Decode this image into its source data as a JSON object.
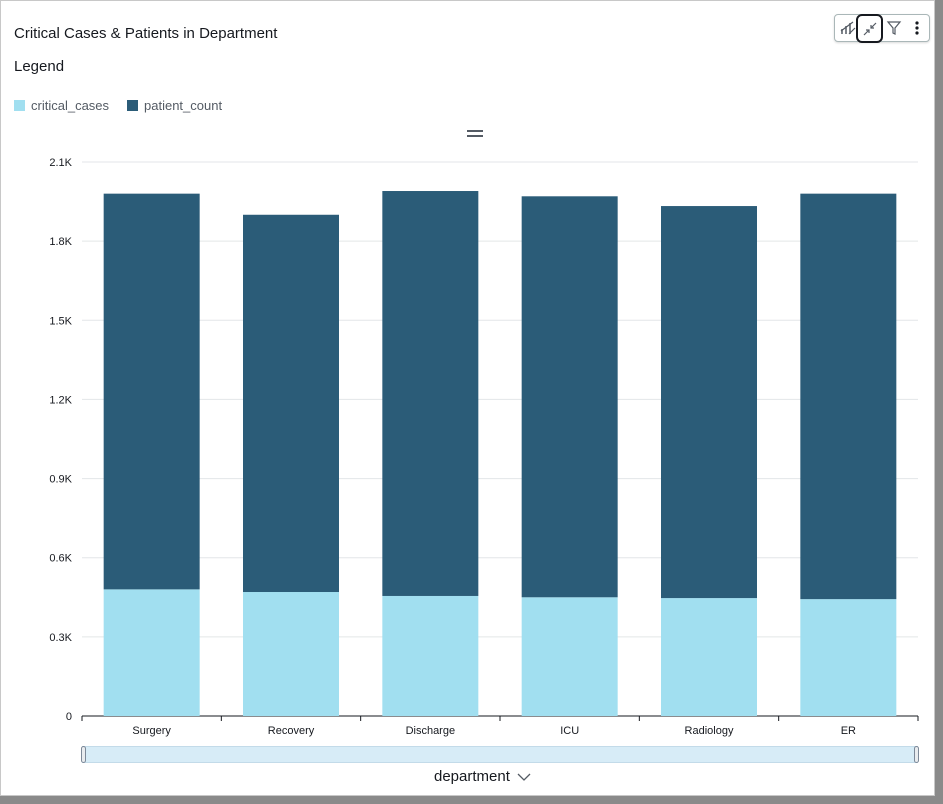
{
  "title": "Critical Cases & Patients in Department",
  "legend": {
    "title": "Legend",
    "items": [
      {
        "label": "critical_cases",
        "color": "#a1dff0"
      },
      {
        "label": "patient_count",
        "color": "#2b5c78"
      }
    ]
  },
  "toolbar": {
    "icons": [
      "chart-type-icon",
      "collapse-icon",
      "filter-icon",
      "more-options-icon"
    ]
  },
  "chart_data": {
    "type": "bar",
    "stacked": true,
    "categories": [
      "Surgery",
      "Recovery",
      "Discharge",
      "ICU",
      "Radiology",
      "ER"
    ],
    "series": [
      {
        "name": "critical_cases",
        "color": "#a1dff0",
        "values": [
          480,
          470,
          455,
          450,
          447,
          443
        ]
      },
      {
        "name": "patient_count",
        "color": "#2b5c78",
        "values": [
          1500,
          1430,
          1535,
          1520,
          1486,
          1537
        ]
      }
    ],
    "xlabel": "department",
    "ylabel": "",
    "ylim": [
      0,
      2100
    ],
    "yticks": [
      {
        "value": 0,
        "label": "0"
      },
      {
        "value": 300,
        "label": "0.3K"
      },
      {
        "value": 600,
        "label": "0.6K"
      },
      {
        "value": 900,
        "label": "0.9K"
      },
      {
        "value": 1200,
        "label": "1.2K"
      },
      {
        "value": 1500,
        "label": "1.5K"
      },
      {
        "value": 1800,
        "label": "1.8K"
      },
      {
        "value": 2100,
        "label": "2.1K"
      }
    ],
    "grid": true,
    "legend_position": "top-left"
  }
}
